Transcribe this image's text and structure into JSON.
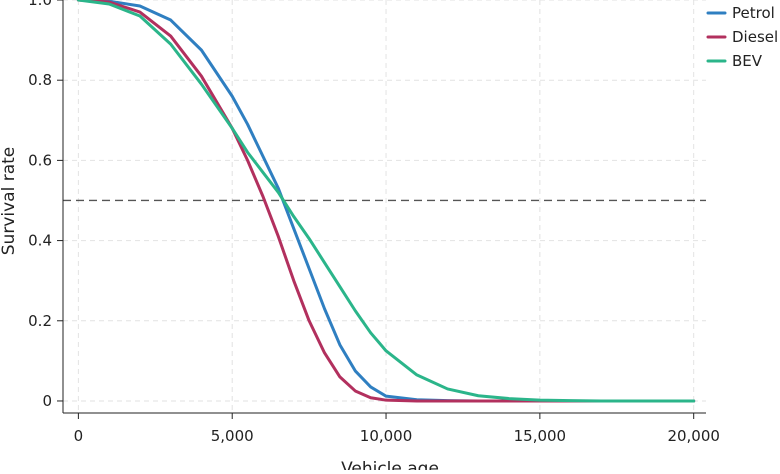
{
  "chart_data": {
    "type": "line",
    "title": "",
    "xlabel": "Vehicle age",
    "ylabel": "Survival rate",
    "xlim": [
      -500,
      20400
    ],
    "ylim": [
      -0.03,
      1.0
    ],
    "xticks": [
      0,
      5000,
      10000,
      15000,
      20000
    ],
    "xtick_labels": [
      "0",
      "5,000",
      "10,000",
      "15,000",
      "20,000"
    ],
    "yticks": [
      0,
      0.2,
      0.4,
      0.6,
      0.8,
      1.0
    ],
    "ytick_labels": [
      "0",
      "0.2",
      "0.4",
      "0.6",
      "0.8",
      "1.0"
    ],
    "grid": true,
    "legend_position": "top-right",
    "reference_line": {
      "y": 0.5,
      "style": "dashed",
      "color": "#555555"
    },
    "x": [
      0,
      1000,
      2000,
      3000,
      4000,
      5000,
      5500,
      6000,
      6500,
      7000,
      7500,
      8000,
      8500,
      9000,
      9500,
      10000,
      11000,
      12000,
      13000,
      14000,
      15000,
      16000,
      17000,
      18000,
      19000,
      20000
    ],
    "series": [
      {
        "name": "Petrol",
        "color": "#2f7fc1",
        "values": [
          1.0,
          0.997,
          0.985,
          0.95,
          0.875,
          0.76,
          0.69,
          0.61,
          0.53,
          0.43,
          0.33,
          0.23,
          0.14,
          0.075,
          0.035,
          0.012,
          0.003,
          0.001,
          0.0,
          0.0,
          0.0,
          0.0,
          0.0,
          0.0,
          0.0,
          0.0
        ]
      },
      {
        "name": "Diesel",
        "color": "#b2305e",
        "values": [
          1.0,
          0.995,
          0.97,
          0.91,
          0.81,
          0.68,
          0.6,
          0.51,
          0.41,
          0.3,
          0.2,
          0.12,
          0.06,
          0.025,
          0.008,
          0.002,
          0.0,
          0.0,
          0.0,
          0.0,
          0.0,
          0.0,
          0.0,
          0.0,
          0.0,
          0.0
        ]
      },
      {
        "name": "BEV",
        "color": "#2bb58a",
        "values": [
          1.0,
          0.99,
          0.96,
          0.89,
          0.79,
          0.68,
          0.62,
          0.57,
          0.52,
          0.46,
          0.405,
          0.345,
          0.285,
          0.225,
          0.17,
          0.125,
          0.065,
          0.03,
          0.013,
          0.006,
          0.002,
          0.001,
          0.0,
          0.0,
          0.0,
          0.0
        ]
      }
    ]
  }
}
